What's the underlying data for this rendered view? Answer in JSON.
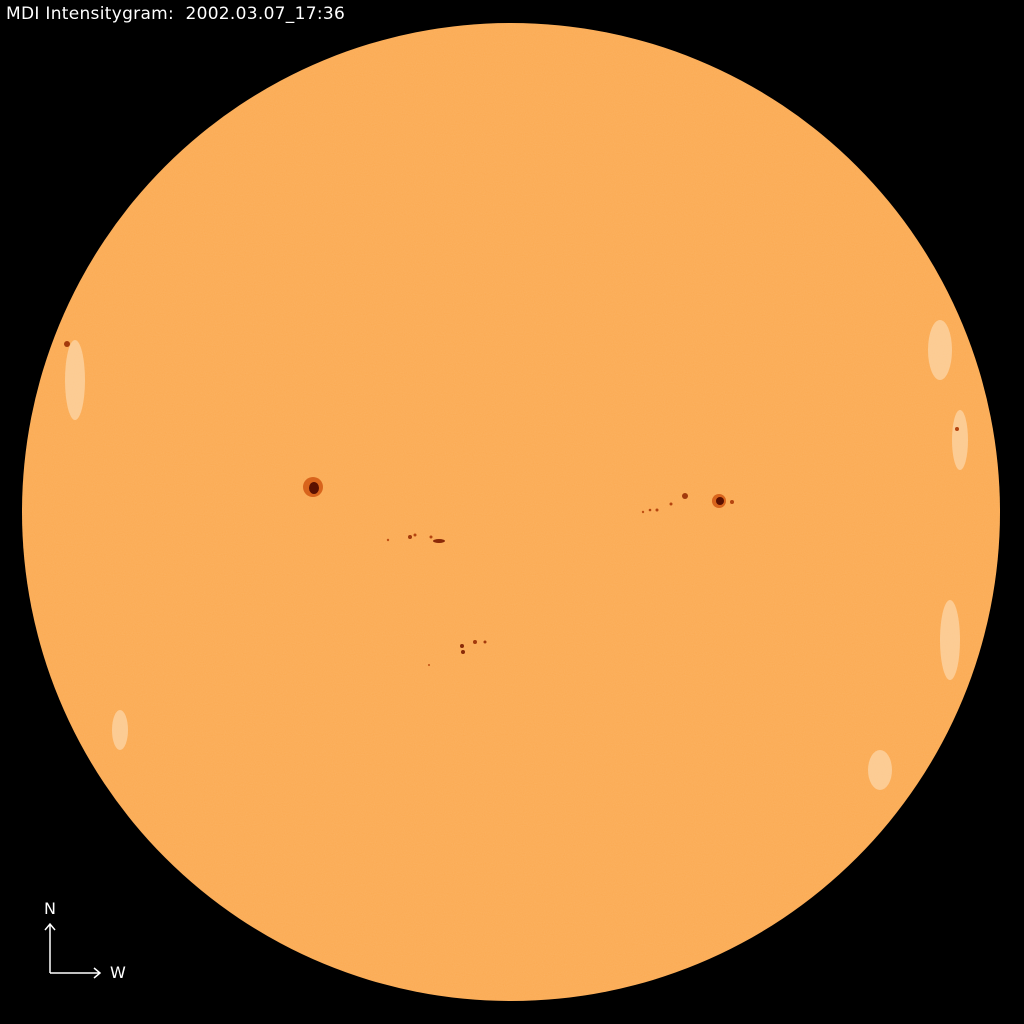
{
  "title": "MDI Intensitygram:  2002.03.07_17:36",
  "compass": {
    "north": "N",
    "west": "W"
  },
  "colors": {
    "background": "#000000",
    "disk": "#fbaa52",
    "sunspot_umbra": "#5a1000",
    "sunspot_penumbra": "#d8641c",
    "faculae": "#fde3bf",
    "text": "#ffffff"
  }
}
